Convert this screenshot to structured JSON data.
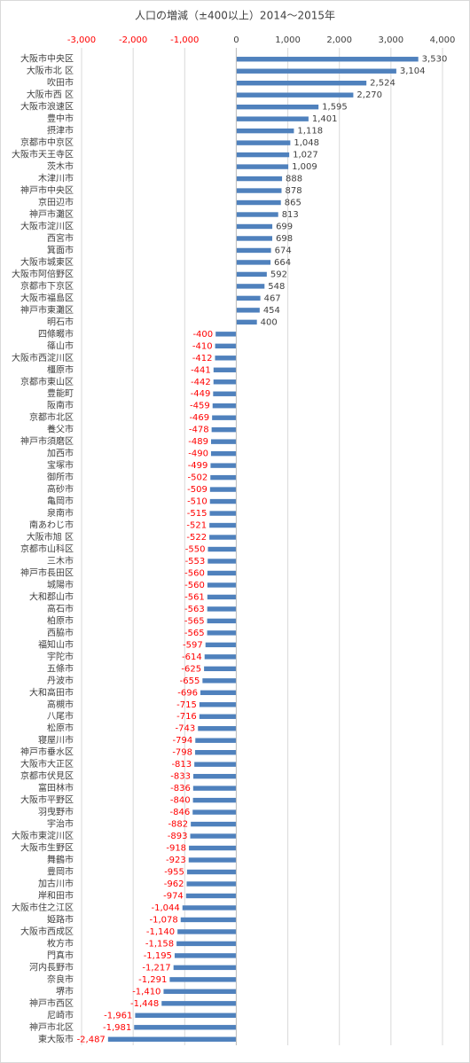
{
  "chart_data": {
    "type": "hbar",
    "title": "人口の増減（±400以上）2014～2015年",
    "categories": [
      "大阪市中央区",
      "大阪市北 区",
      "吹田市",
      "大阪市西 区",
      "大阪市浪速区",
      "豊中市",
      "摂津市",
      "京都市中京区",
      "大阪市天王寺区",
      "茨木市",
      "木津川市",
      "神戸市中央区",
      "京田辺市",
      "神戸市灘区",
      "大阪市淀川区",
      "西宮市",
      "箕面市",
      "大阪市城東区",
      "大阪市阿倍野区",
      "京都市下京区",
      "大阪市福島区",
      "神戸市東灘区",
      "明石市",
      "四條畷市",
      "篠山市",
      "大阪市西淀川区",
      "橿原市",
      "京都市東山区",
      "豊能町",
      "阪南市",
      "京都市北区",
      "養父市",
      "神戸市須磨区",
      "加西市",
      "宝塚市",
      "御所市",
      "高砂市",
      "亀岡市",
      "泉南市",
      "南あわじ市",
      "大阪市旭 区",
      "京都市山科区",
      "三木市",
      "神戸市長田区",
      "城陽市",
      "大和郡山市",
      "高石市",
      "柏原市",
      "西脇市",
      "福知山市",
      "宇陀市",
      "五條市",
      "丹波市",
      "大和高田市",
      "高槻市",
      "八尾市",
      "松原市",
      "寝屋川市",
      "神戸市垂水区",
      "大阪市大正区",
      "京都市伏見区",
      "富田林市",
      "大阪市平野区",
      "羽曳野市",
      "宇治市",
      "大阪市東淀川区",
      "大阪市生野区",
      "舞鶴市",
      "豊岡市",
      "加古川市",
      "岸和田市",
      "大阪市住之江区",
      "姫路市",
      "大阪市西成区",
      "枚方市",
      "門真市",
      "河内長野市",
      "奈良市",
      "堺市",
      "神戸市西区",
      "尼崎市",
      "神戸市北区",
      "東大阪市"
    ],
    "values": [
      3530,
      3104,
      2524,
      2270,
      1595,
      1401,
      1118,
      1048,
      1027,
      1009,
      888,
      878,
      865,
      813,
      699,
      698,
      674,
      664,
      592,
      548,
      467,
      454,
      400,
      -400,
      -410,
      -412,
      -441,
      -442,
      -449,
      -459,
      -469,
      -478,
      -489,
      -490,
      -499,
      -502,
      -509,
      -510,
      -515,
      -521,
      -522,
      -550,
      -553,
      -560,
      -560,
      -561,
      -563,
      -565,
      -565,
      -597,
      -614,
      -625,
      -655,
      -696,
      -715,
      -716,
      -743,
      -794,
      -798,
      -813,
      -833,
      -836,
      -840,
      -846,
      -882,
      -893,
      -918,
      -923,
      -955,
      -962,
      -974,
      -1044,
      -1078,
      -1140,
      -1158,
      -1195,
      -1217,
      -1291,
      -1410,
      -1448,
      -1961,
      -1981,
      -2487
    ],
    "value_labels": [
      "3,530",
      "3,104",
      "2,524",
      "2,270",
      "1,595",
      "1,401",
      "1,118",
      "1,048",
      "1,027",
      "1,009",
      "888",
      "878",
      "865",
      "813",
      "699",
      "698",
      "674",
      "664",
      "592",
      "548",
      "467",
      "454",
      "400",
      "-400",
      "-410",
      "-412",
      "-441",
      "-442",
      "-449",
      "-459",
      "-469",
      "-478",
      "-489",
      "-490",
      "-499",
      "-502",
      "-509",
      "-510",
      "-515",
      "-521",
      "-522",
      "-550",
      "-553",
      "-560",
      "-560",
      "-561",
      "-563",
      "-565",
      "-565",
      "-597",
      "-614",
      "-625",
      "-655",
      "-696",
      "-715",
      "-716",
      "-743",
      "-794",
      "-798",
      "-813",
      "-833",
      "-836",
      "-840",
      "-846",
      "-882",
      "-893",
      "-918",
      "-923",
      "-955",
      "-962",
      "-974",
      "-1,044",
      "-1,078",
      "-1,140",
      "-1,158",
      "-1,195",
      "-1,217",
      "-1,291",
      "-1,410",
      "-1,448",
      "-1,961",
      "-1,981",
      "-2,487"
    ],
    "color": "#4f81bd",
    "negative_label_color": "#ff0000",
    "xlim": [
      -3000,
      4000
    ],
    "xticks": [
      {
        "value": -3000,
        "label": "-3,000"
      },
      {
        "value": -2000,
        "label": "-2,000"
      },
      {
        "value": -1000,
        "label": "-1,000"
      },
      0,
      {
        "value": 1000,
        "label": "1,000"
      },
      {
        "value": 2000,
        "label": "2,000"
      },
      {
        "value": 3000,
        "label": "3,000"
      },
      {
        "value": 4000,
        "label": "4,000"
      }
    ],
    "grid": true
  }
}
